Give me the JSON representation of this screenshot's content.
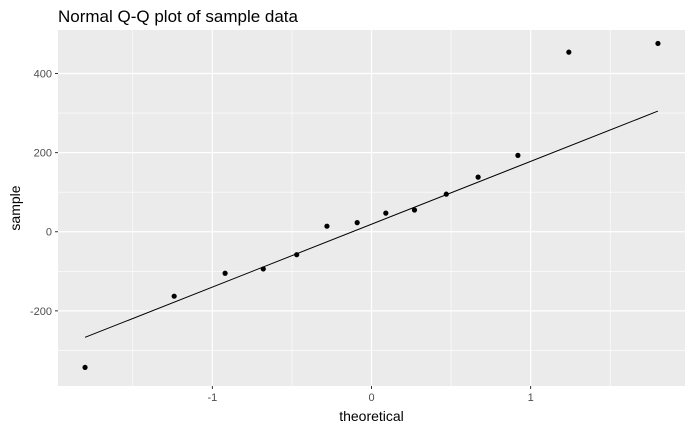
{
  "chart_data": {
    "type": "scatter",
    "title": "Normal Q-Q plot of sample data",
    "xlabel": "theoretical",
    "ylabel": "sample",
    "xlim": [
      -1.97,
      1.97
    ],
    "ylim": [
      -390,
      510
    ],
    "x_major_ticks": [
      -1,
      0,
      1
    ],
    "x_minor_ticks": [
      -1.5,
      -0.5,
      0.5,
      1.5
    ],
    "y_major_ticks": [
      -200,
      0,
      200,
      400
    ],
    "y_minor_ticks": [
      -300,
      -100,
      100,
      300
    ],
    "x_tick_labels": [
      "-1",
      "0",
      "1"
    ],
    "y_tick_labels": [
      "-200",
      "0",
      "200",
      "400"
    ],
    "grid": true,
    "legend": "none",
    "points": [
      {
        "x": -1.8,
        "y": -343
      },
      {
        "x": -1.24,
        "y": -163
      },
      {
        "x": -0.92,
        "y": -105
      },
      {
        "x": -0.68,
        "y": -94
      },
      {
        "x": -0.47,
        "y": -58
      },
      {
        "x": -0.28,
        "y": 14
      },
      {
        "x": -0.09,
        "y": 23
      },
      {
        "x": 0.09,
        "y": 47
      },
      {
        "x": 0.27,
        "y": 55
      },
      {
        "x": 0.47,
        "y": 95
      },
      {
        "x": 0.67,
        "y": 138
      },
      {
        "x": 0.92,
        "y": 193
      },
      {
        "x": 1.24,
        "y": 454
      },
      {
        "x": 1.8,
        "y": 476
      }
    ],
    "reference_line": {
      "x": [
        -1.8,
        1.8
      ],
      "y": [
        -267,
        305
      ]
    },
    "colors": {
      "panel": "#ebebeb",
      "grid": "#ffffff",
      "points": "#000000",
      "line": "#000000",
      "tick_label": "#4d4d4d",
      "tick_mark": "#333333"
    }
  }
}
